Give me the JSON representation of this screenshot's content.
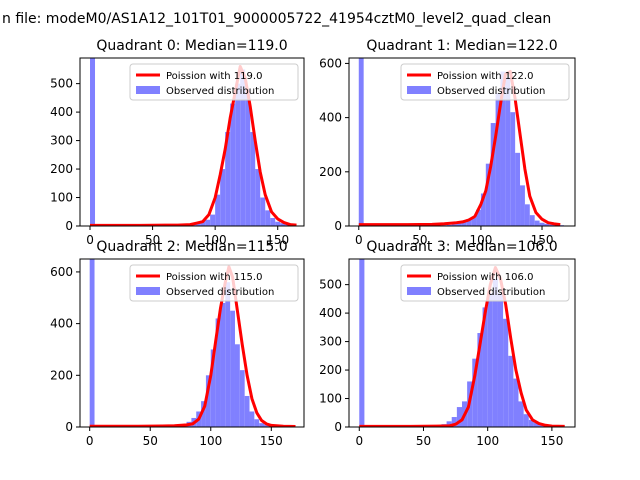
{
  "figure": {
    "suptitle": "n file: modeM0/AS1A12_101T01_9000005722_41954cztM0_level2_quad_clean"
  },
  "colors": {
    "poisson": "#ff0000",
    "observed": "#8080ff",
    "axis": "#000000"
  },
  "chart_data": [
    {
      "type": "bar",
      "title": "Quadrant 0: Median=119.0",
      "median": 119.0,
      "xlim": [
        -8,
        171
      ],
      "ylim": [
        0,
        590
      ],
      "xticks": [
        0,
        50,
        100,
        150
      ],
      "yticks": [
        0,
        100,
        200,
        300,
        400,
        500
      ],
      "legend": {
        "location": "upper right",
        "entries": [
          "Poission with 119.0",
          "Observed distribution"
        ]
      },
      "bin_width": 4,
      "series": [
        {
          "name": "Observed distribution",
          "kind": "histogram",
          "x": [
            2,
            58,
            62,
            66,
            70,
            74,
            78,
            82,
            86,
            90,
            94,
            98,
            102,
            106,
            110,
            114,
            118,
            122,
            126,
            130,
            134,
            138,
            142,
            146,
            150,
            154,
            158,
            162
          ],
          "values": [
            590,
            1,
            1,
            2,
            2,
            3,
            5,
            8,
            12,
            18,
            22,
            40,
            110,
            200,
            330,
            430,
            500,
            550,
            480,
            330,
            200,
            100,
            55,
            28,
            15,
            10,
            7,
            5
          ]
        },
        {
          "name": "Poission with 119.0",
          "kind": "line",
          "x": [
            0,
            20,
            40,
            60,
            70,
            80,
            85,
            90,
            95,
            100,
            104,
            108,
            112,
            116,
            120,
            124,
            128,
            132,
            136,
            140,
            145,
            150,
            155,
            160,
            165
          ],
          "values": [
            2,
            2,
            2,
            3,
            3,
            5,
            10,
            15,
            40,
            100,
            180,
            270,
            380,
            470,
            560,
            520,
            420,
            300,
            190,
            110,
            50,
            25,
            12,
            5,
            3
          ]
        }
      ]
    },
    {
      "type": "bar",
      "title": "Quadrant 1: Median=122.0",
      "median": 122.0,
      "xlim": [
        -8,
        177
      ],
      "ylim": [
        0,
        620
      ],
      "xticks": [
        0,
        50,
        100,
        150
      ],
      "yticks": [
        0,
        200,
        400,
        600
      ],
      "legend": {
        "location": "upper right",
        "entries": [
          "Poission with 122.0",
          "Observed distribution"
        ]
      },
      "bin_width": 4,
      "series": [
        {
          "name": "Observed distribution",
          "kind": "histogram",
          "x": [
            2,
            66,
            70,
            74,
            78,
            82,
            86,
            90,
            94,
            98,
            102,
            106,
            110,
            114,
            118,
            122,
            126,
            130,
            134,
            138,
            142,
            146,
            150,
            154,
            158,
            162,
            166
          ],
          "values": [
            620,
            2,
            3,
            4,
            6,
            10,
            15,
            25,
            30,
            60,
            120,
            230,
            380,
            490,
            570,
            550,
            420,
            270,
            150,
            80,
            40,
            20,
            12,
            8,
            5,
            4,
            3
          ]
        },
        {
          "name": "Poission with 122.0",
          "kind": "line",
          "x": [
            0,
            20,
            40,
            60,
            70,
            80,
            85,
            90,
            95,
            100,
            104,
            108,
            112,
            116,
            120,
            124,
            128,
            132,
            136,
            140,
            145,
            150,
            155,
            160,
            165
          ],
          "values": [
            5,
            5,
            5,
            6,
            8,
            12,
            15,
            22,
            35,
            80,
            130,
            220,
            330,
            450,
            560,
            570,
            470,
            340,
            210,
            110,
            50,
            25,
            12,
            8,
            5
          ]
        }
      ]
    },
    {
      "type": "bar",
      "title": "Quadrant 2: Median=115.0",
      "median": 115.0,
      "xlim": [
        -8,
        177
      ],
      "ylim": [
        0,
        650
      ],
      "xticks": [
        0,
        50,
        100,
        150
      ],
      "yticks": [
        0,
        200,
        400,
        600
      ],
      "legend": {
        "location": "upper right",
        "entries": [
          "Poission with 115.0",
          "Observed distribution"
        ]
      },
      "bin_width": 4,
      "series": [
        {
          "name": "Observed distribution",
          "kind": "histogram",
          "x": [
            2,
            62,
            66,
            70,
            74,
            78,
            82,
            86,
            90,
            94,
            98,
            102,
            106,
            110,
            114,
            118,
            122,
            126,
            130,
            134,
            138,
            142,
            146,
            150,
            154,
            158
          ],
          "values": [
            650,
            1,
            2,
            3,
            5,
            10,
            20,
            35,
            60,
            100,
            200,
            300,
            420,
            480,
            560,
            450,
            320,
            220,
            120,
            60,
            30,
            15,
            10,
            5,
            3,
            2
          ]
        },
        {
          "name": "Poission with 115.0",
          "kind": "line",
          "x": [
            0,
            20,
            40,
            60,
            70,
            80,
            85,
            90,
            95,
            100,
            104,
            108,
            112,
            115,
            118,
            122,
            126,
            130,
            134,
            138,
            142,
            146,
            150,
            160,
            170
          ],
          "values": [
            3,
            3,
            3,
            4,
            5,
            8,
            12,
            30,
            80,
            200,
            330,
            460,
            560,
            620,
            580,
            450,
            320,
            200,
            110,
            55,
            25,
            12,
            6,
            3,
            2
          ]
        }
      ]
    },
    {
      "type": "bar",
      "title": "Quadrant 3: Median=106.0",
      "median": 106.0,
      "xlim": [
        -8,
        168
      ],
      "ylim": [
        0,
        590
      ],
      "xticks": [
        0,
        50,
        100,
        150
      ],
      "yticks": [
        0,
        100,
        200,
        300,
        400,
        500
      ],
      "legend": {
        "location": "upper right",
        "entries": [
          "Poission with 106.0",
          "Observed distribution"
        ]
      },
      "bin_width": 4,
      "series": [
        {
          "name": "Observed distribution",
          "kind": "histogram",
          "x": [
            2,
            54,
            58,
            62,
            66,
            70,
            74,
            78,
            82,
            86,
            90,
            94,
            98,
            102,
            106,
            110,
            114,
            118,
            122,
            126,
            130,
            134,
            138,
            142,
            146,
            150
          ],
          "values": [
            590,
            1,
            2,
            3,
            10,
            20,
            35,
            70,
            90,
            160,
            240,
            330,
            420,
            470,
            520,
            470,
            380,
            250,
            170,
            90,
            45,
            25,
            15,
            8,
            5,
            3
          ]
        },
        {
          "name": "Poission with 106.0",
          "kind": "line",
          "x": [
            0,
            20,
            40,
            60,
            70,
            75,
            80,
            85,
            90,
            94,
            98,
            102,
            106,
            110,
            114,
            118,
            122,
            126,
            130,
            135,
            140,
            145,
            150,
            160
          ],
          "values": [
            2,
            2,
            2,
            3,
            4,
            10,
            25,
            70,
            180,
            290,
            400,
            500,
            560,
            520,
            430,
            310,
            200,
            120,
            60,
            25,
            12,
            6,
            3,
            2
          ]
        }
      ]
    }
  ]
}
